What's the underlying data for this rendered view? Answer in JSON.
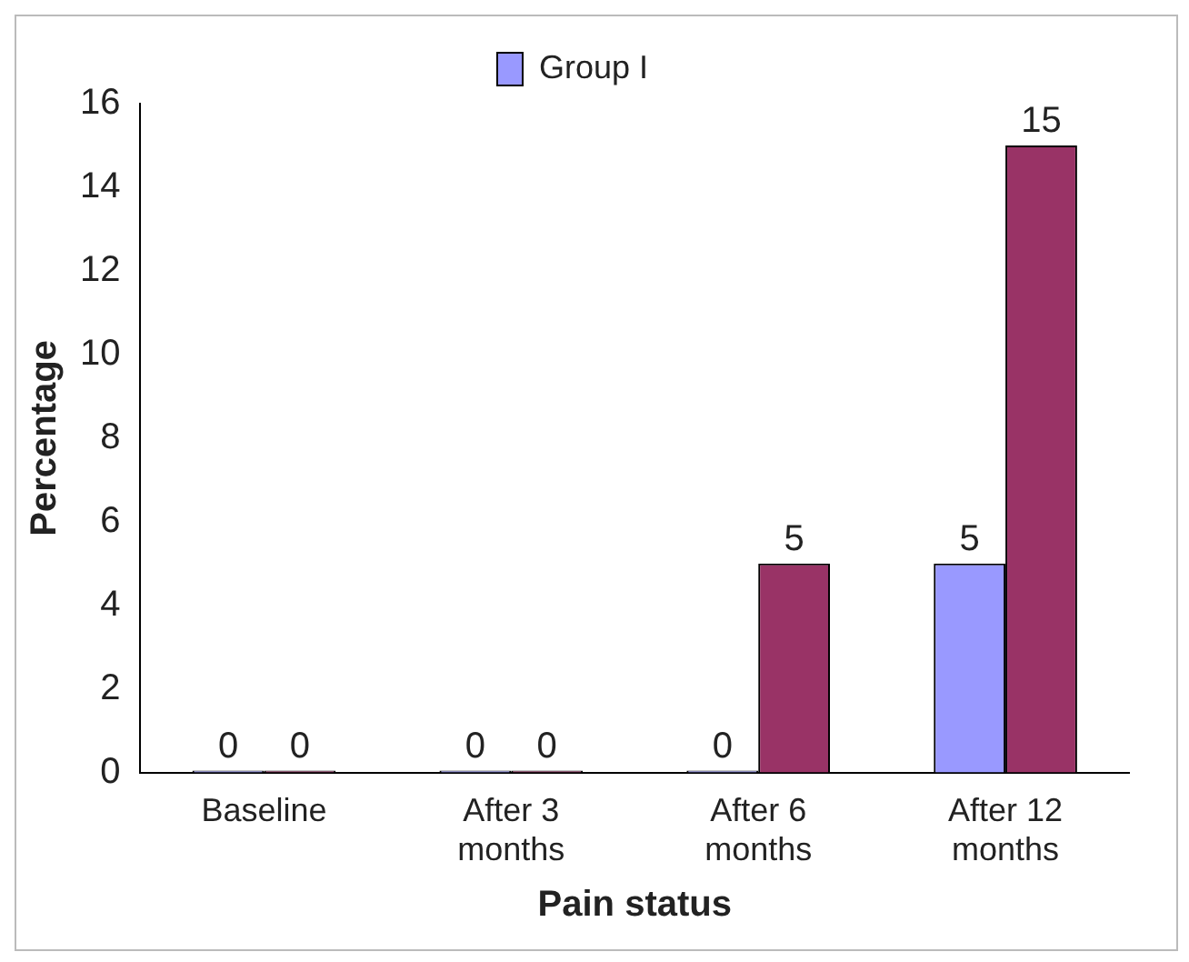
{
  "chart_data": {
    "type": "bar",
    "xlabel": "Pain status",
    "ylabel": "Percentage",
    "categories": [
      "Baseline",
      "After 3 months",
      "After 6 months",
      "After 12 months"
    ],
    "series": [
      {
        "name": "Group I",
        "color": "#9999ff",
        "values": [
          0,
          0,
          0,
          5
        ]
      },
      {
        "color": "#993366",
        "values": [
          0,
          0,
          5,
          15
        ]
      }
    ],
    "ylim": [
      0,
      16
    ],
    "yticks": [
      0,
      2,
      4,
      6,
      8,
      10,
      12,
      14,
      16
    ],
    "grid": false,
    "legend": "top",
    "data_labels": true
  }
}
